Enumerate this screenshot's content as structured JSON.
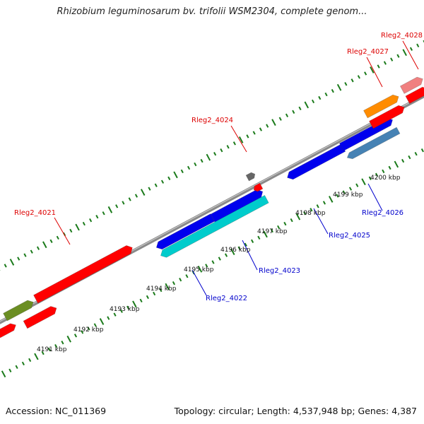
{
  "title": "Rhizobium leguminosarum bv. trifolii WSM2304, complete genom...",
  "footer": {
    "accession": "Accession: NC_011369",
    "summary": "Topology: circular; Length: 4,537,948 bp; Genes: 4,387"
  },
  "colors": {
    "backbone": "#8a8a8a",
    "tick": "#1a7a1a",
    "label_top": "#dd0000",
    "label_bottom": "#0000cc"
  },
  "kbp_labels": [
    "4191 kbp",
    "4192 kbp",
    "4193 kbp",
    "4194 kbp",
    "4195 kbp",
    "4196 kbp",
    "4197 kbp",
    "4198 kbp",
    "4199 kbp",
    "4200 kbp"
  ],
  "gene_labels": {
    "top": [
      "Rleg2_4021",
      "Rleg2_4024",
      "Rleg2_4027",
      "Rleg2_4028"
    ],
    "bottom": [
      "Rleg2_4022",
      "Rleg2_4023",
      "Rleg2_4025",
      "Rleg2_4026"
    ]
  },
  "genes": [
    {
      "color": "#ff0000"
    },
    {
      "color": "#ff0000"
    },
    {
      "color": "#6b8e23"
    },
    {
      "color": "#ff0000"
    },
    {
      "color": "#ff0000"
    },
    {
      "color": "#0000ee"
    },
    {
      "color": "#0000ee"
    },
    {
      "color": "#00cccc"
    },
    {
      "color": "#666666"
    },
    {
      "color": "#ff0000"
    },
    {
      "color": "#0000ee"
    },
    {
      "color": "#0000ee"
    },
    {
      "color": "#4682b4"
    },
    {
      "color": "#ff8c00"
    },
    {
      "color": "#ff0000"
    },
    {
      "color": "#f08080"
    },
    {
      "color": "#ff0000"
    }
  ]
}
